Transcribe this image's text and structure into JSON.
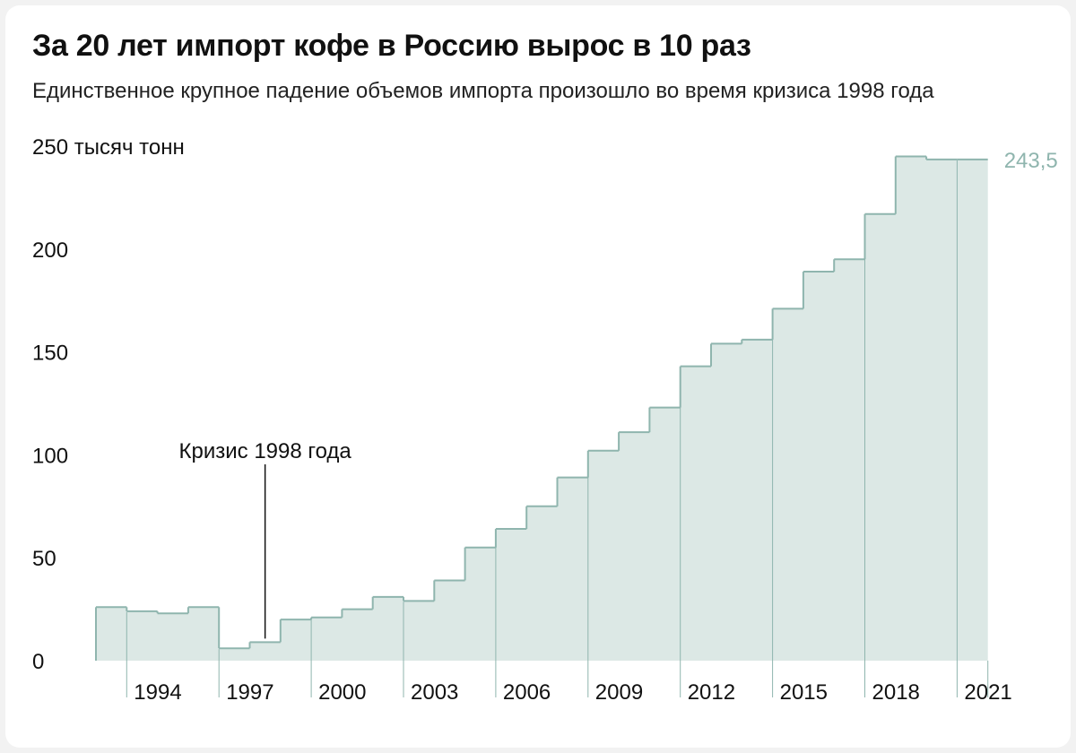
{
  "title": "За 20 лет импорт кофе в Россию вырос в 10 раз",
  "subtitle": "Единственное крупное падение объемов импорта произошло во время кризиса 1998 года",
  "chart_data": {
    "type": "area",
    "step": true,
    "title": "За 20 лет импорт кофе в Россию вырос в 10 раз",
    "subtitle": "Единственное крупное падение объемов импорта произошло во время кризиса 1998 года",
    "ylabel": "тысяч тонн",
    "ylim": [
      0,
      250
    ],
    "yticks": [
      {
        "value": 0,
        "label": "0"
      },
      {
        "value": 50,
        "label": "50"
      },
      {
        "value": 100,
        "label": "100"
      },
      {
        "value": 150,
        "label": "150"
      },
      {
        "value": 200,
        "label": "200"
      },
      {
        "value": 250,
        "label": "250 тысяч тонн"
      }
    ],
    "xtick_labels": [
      "1994",
      "1997",
      "2000",
      "2003",
      "2006",
      "2009",
      "2012",
      "2015",
      "2018",
      "2021"
    ],
    "x": [
      1993,
      1994,
      1995,
      1996,
      1997,
      1998,
      1999,
      2000,
      2001,
      2002,
      2003,
      2004,
      2005,
      2006,
      2007,
      2008,
      2009,
      2010,
      2011,
      2012,
      2013,
      2014,
      2015,
      2016,
      2017,
      2018,
      2019,
      2020,
      2021
    ],
    "values": [
      26,
      24,
      23,
      26,
      6,
      9,
      20,
      21,
      25,
      31,
      29,
      39,
      55,
      64,
      75,
      89,
      102,
      111,
      123,
      143,
      154,
      156,
      171,
      189,
      195,
      217,
      245,
      243.5,
      243.5
    ],
    "last_value_label": "243,5",
    "annotations": [
      {
        "x": 1998,
        "text": "Кризис 1998 года"
      }
    ],
    "colors": {
      "fill": "#dce8e5",
      "line": "#8fb5ae",
      "text": "#111111",
      "value_label": "#8fb5ae"
    },
    "grid": false,
    "legend": "none"
  }
}
